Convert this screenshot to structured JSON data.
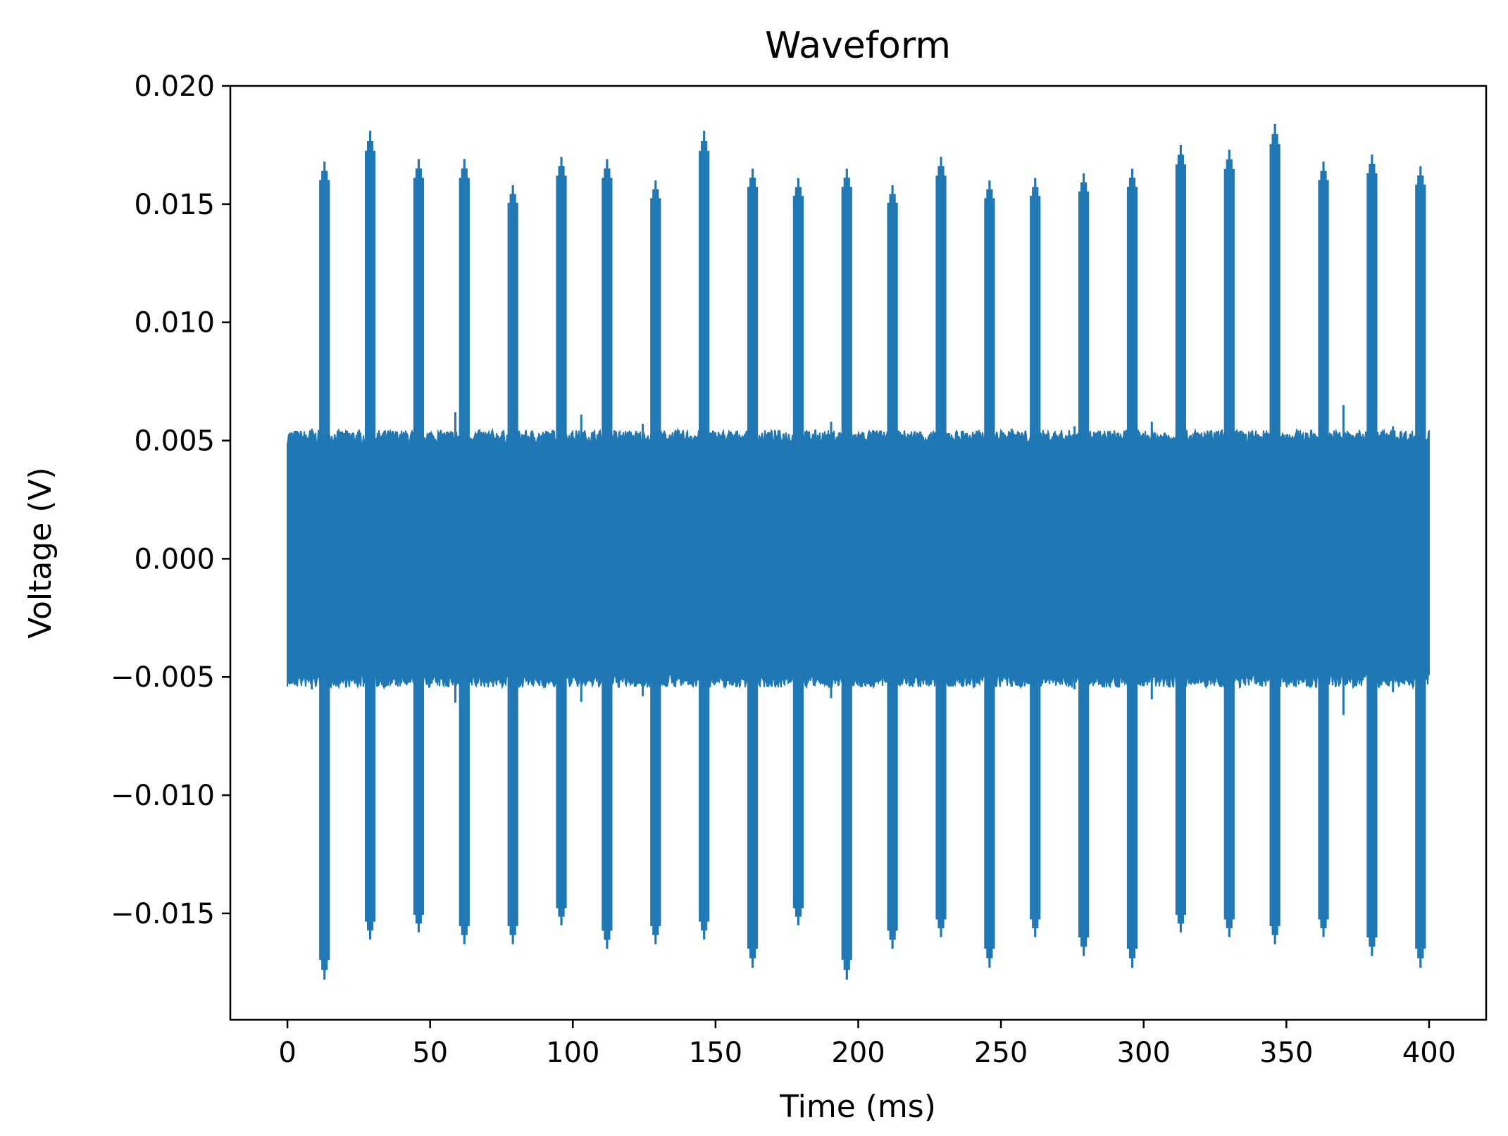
{
  "chart_data": {
    "type": "line",
    "title": "Waveform",
    "xlabel": "Time (ms)",
    "ylabel": "Voltage (V)",
    "xlim": [
      -20,
      420
    ],
    "ylim": [
      -0.0195,
      0.02
    ],
    "xticks": [
      0,
      50,
      100,
      150,
      200,
      250,
      300,
      350,
      400
    ],
    "xtick_labels": [
      "0",
      "50",
      "100",
      "150",
      "200",
      "250",
      "300",
      "350",
      "400"
    ],
    "yticks": [
      0.02,
      0.015,
      0.01,
      0.005,
      0.0,
      -0.005,
      -0.01,
      -0.015
    ],
    "ytick_labels": [
      "0.020",
      "0.015",
      "0.010",
      "0.005",
      "0.000",
      "−0.005",
      "−0.010",
      "−0.015"
    ],
    "grid": false,
    "legend": "none",
    "series": [
      {
        "color": "#1f77b4",
        "x_range": [
          0,
          400
        ],
        "noise_band": [
          -0.005,
          0.005
        ],
        "noise_peaks": [
          0.0055,
          0.0066,
          0.0062,
          0.0059,
          0.0061,
          0.0057,
          0.0052,
          0.0056,
          0.0058,
          0.0055,
          0.0054,
          0.0055,
          0.0056,
          0.0058,
          0.0053,
          0.0054,
          0.0065,
          0.0056
        ],
        "spikes": [
          {
            "t": 13,
            "max": 0.0168,
            "min": -0.0178
          },
          {
            "t": 29,
            "max": 0.0181,
            "min": -0.0161
          },
          {
            "t": 46,
            "max": 0.0169,
            "min": -0.0158
          },
          {
            "t": 62,
            "max": 0.0169,
            "min": -0.0163
          },
          {
            "t": 79,
            "max": 0.0158,
            "min": -0.0163
          },
          {
            "t": 96,
            "max": 0.017,
            "min": -0.0155
          },
          {
            "t": 112,
            "max": 0.0169,
            "min": -0.0165
          },
          {
            "t": 129,
            "max": 0.016,
            "min": -0.0163
          },
          {
            "t": 146,
            "max": 0.0181,
            "min": -0.0161
          },
          {
            "t": 163,
            "max": 0.0165,
            "min": -0.0173
          },
          {
            "t": 179,
            "max": 0.0161,
            "min": -0.0155
          },
          {
            "t": 196,
            "max": 0.0165,
            "min": -0.0178
          },
          {
            "t": 212,
            "max": 0.0158,
            "min": -0.0165
          },
          {
            "t": 229,
            "max": 0.017,
            "min": -0.016
          },
          {
            "t": 246,
            "max": 0.016,
            "min": -0.0173
          },
          {
            "t": 262,
            "max": 0.0161,
            "min": -0.016
          },
          {
            "t": 279,
            "max": 0.0163,
            "min": -0.0168
          },
          {
            "t": 296,
            "max": 0.0165,
            "min": -0.0173
          },
          {
            "t": 313,
            "max": 0.0175,
            "min": -0.0158
          },
          {
            "t": 330,
            "max": 0.0173,
            "min": -0.016
          },
          {
            "t": 346,
            "max": 0.0184,
            "min": -0.0163
          },
          {
            "t": 363,
            "max": 0.0168,
            "min": -0.016
          },
          {
            "t": 380,
            "max": 0.0171,
            "min": -0.0168
          },
          {
            "t": 397,
            "max": 0.0166,
            "min": -0.0173
          }
        ]
      }
    ]
  }
}
